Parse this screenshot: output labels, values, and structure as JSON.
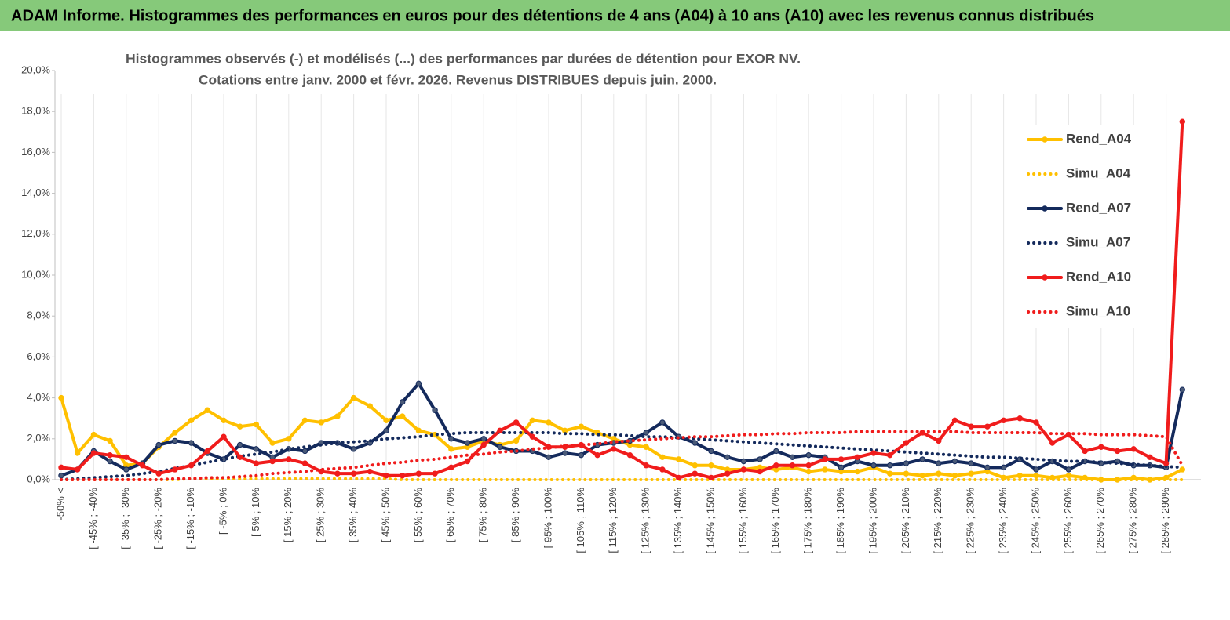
{
  "header": {
    "title": "ADAM Informe. Histogrammes des performances en euros pour des détentions de 4 ans (A04) à 10 ans (A10) avec les revenus connus distribués"
  },
  "chart_data": {
    "type": "line",
    "title": "Histogrammes observés (-) et modélisés (...) des performances par durées de détention pour EXOR NV.",
    "subtitle": "Cotations entre janv. 2000 et févr. 2026. Revenus DISTRIBUES depuis juin. 2000.",
    "categories": [
      "-50% <",
      null,
      "[ -45% ; -40%",
      null,
      "[ -35% ; -30%",
      null,
      "[ -25% ; -20%",
      null,
      "[ -15% ; -10%",
      null,
      "[ -5% ; 0%",
      null,
      "[ 5% ; 10%",
      null,
      "[ 15% ; 20%",
      null,
      "[ 25% ; 30%",
      null,
      "[ 35% ; 40%",
      null,
      "[ 45% ; 50%",
      null,
      "[ 55% ; 60%",
      null,
      "[ 65% ; 70%",
      null,
      "[ 75% ; 80%",
      null,
      "[ 85% ; 90%",
      null,
      "[ 95% ; 100%",
      null,
      "[ 105% ; 110%",
      null,
      "[ 115% ; 120%",
      null,
      "[ 125% ; 130%",
      null,
      "[ 135% ; 140%",
      null,
      "[ 145% ; 150%",
      null,
      "[ 155% ; 160%",
      null,
      "[ 165% ; 170%",
      null,
      "[ 175% ; 180%",
      null,
      "[ 185% ; 190%",
      null,
      "[ 195% ; 200%",
      null,
      "[ 205% ; 210%",
      null,
      "[ 215% ; 220%",
      null,
      "[ 225% ; 230%",
      null,
      "[ 235% ; 240%",
      null,
      "[ 245% ; 250%",
      null,
      "[ 255% ; 260%",
      null,
      "[ 265% ; 270%",
      null,
      "[ 275% ; 280%",
      null,
      "[ 285% ; 290%",
      null
    ],
    "series": [
      {
        "name": "Rend_A04",
        "color": "#ffc000",
        "line_style": "solid",
        "markers": true,
        "values": [
          4.0,
          1.3,
          2.2,
          1.9,
          0.7,
          0.8,
          1.6,
          2.3,
          2.9,
          3.4,
          2.9,
          2.6,
          2.7,
          1.8,
          2.0,
          2.9,
          2.8,
          3.1,
          4.0,
          3.6,
          2.9,
          3.1,
          2.4,
          2.2,
          1.5,
          1.6,
          1.9,
          1.7,
          1.9,
          2.9,
          2.8,
          2.4,
          2.6,
          2.3,
          2.0,
          1.7,
          1.6,
          1.1,
          1.0,
          0.7,
          0.7,
          0.5,
          0.5,
          0.6,
          0.5,
          0.6,
          0.4,
          0.5,
          0.4,
          0.4,
          0.6,
          0.3,
          0.3,
          0.2,
          0.3,
          0.2,
          0.3,
          0.4,
          0.1,
          0.2,
          0.2,
          0.1,
          0.2,
          0.1,
          0.0,
          0.0,
          0.1,
          0.0,
          0.1,
          0.5
        ]
      },
      {
        "name": "Simu_A04",
        "color": "#ffc000",
        "line_style": "dotted",
        "markers": false,
        "values": [
          0,
          0,
          0,
          0,
          0,
          0,
          0,
          0,
          0.05,
          0.05,
          0.05,
          0.05,
          0.05,
          0.05,
          0.05,
          0.05,
          0.05,
          0.05,
          0.05,
          0.05,
          0.05,
          0,
          0,
          0,
          0,
          0,
          0,
          0,
          0,
          0,
          0,
          0,
          0,
          0,
          0,
          0,
          0,
          0,
          0,
          0,
          0,
          0,
          0,
          0,
          0,
          0,
          0,
          0,
          0,
          0,
          0,
          0,
          0,
          0,
          0,
          0,
          0,
          0,
          0,
          0,
          0,
          0,
          0,
          0,
          0,
          0,
          0,
          0,
          0,
          0
        ]
      },
      {
        "name": "Rend_A07",
        "color": "#142a5c",
        "line_style": "solid",
        "markers": true,
        "values": [
          0.2,
          0.5,
          1.4,
          0.9,
          0.5,
          0.8,
          1.7,
          1.9,
          1.8,
          1.3,
          1.0,
          1.7,
          1.5,
          1.1,
          1.5,
          1.4,
          1.8,
          1.8,
          1.5,
          1.8,
          2.4,
          3.8,
          4.7,
          3.4,
          2.0,
          1.8,
          2.0,
          1.6,
          1.4,
          1.4,
          1.1,
          1.3,
          1.2,
          1.7,
          1.8,
          1.9,
          2.3,
          2.8,
          2.1,
          1.8,
          1.4,
          1.1,
          0.9,
          1.0,
          1.4,
          1.1,
          1.2,
          1.1,
          0.6,
          0.9,
          0.7,
          0.7,
          0.8,
          1.0,
          0.8,
          0.9,
          0.8,
          0.6,
          0.6,
          1.0,
          0.5,
          0.9,
          0.5,
          0.9,
          0.8,
          0.9,
          0.7,
          0.7,
          0.6,
          4.4
        ]
      },
      {
        "name": "Simu_A07",
        "color": "#142a5c",
        "line_style": "dotted",
        "markers": false,
        "values": [
          0.0,
          0.05,
          0.1,
          0.15,
          0.2,
          0.3,
          0.4,
          0.55,
          0.7,
          0.85,
          1.0,
          1.15,
          1.25,
          1.35,
          1.5,
          1.6,
          1.7,
          1.8,
          1.85,
          1.9,
          2.0,
          2.05,
          2.1,
          2.2,
          2.25,
          2.3,
          2.3,
          2.3,
          2.3,
          2.3,
          2.3,
          2.25,
          2.25,
          2.2,
          2.2,
          2.15,
          2.1,
          2.1,
          2.05,
          2.0,
          1.95,
          1.9,
          1.85,
          1.8,
          1.75,
          1.7,
          1.65,
          1.6,
          1.55,
          1.5,
          1.45,
          1.4,
          1.35,
          1.3,
          1.25,
          1.2,
          1.15,
          1.1,
          1.1,
          1.05,
          1.0,
          0.95,
          0.9,
          0.9,
          0.85,
          0.8,
          0.75,
          0.7,
          0.65,
          0.6
        ]
      },
      {
        "name": "Rend_A10",
        "color": "#f01c1c",
        "line_style": "solid",
        "markers": true,
        "values": [
          0.6,
          0.5,
          1.3,
          1.2,
          1.1,
          0.7,
          0.3,
          0.5,
          0.7,
          1.4,
          2.1,
          1.1,
          0.8,
          0.9,
          1.0,
          0.8,
          0.4,
          0.3,
          0.3,
          0.4,
          0.2,
          0.2,
          0.3,
          0.3,
          0.6,
          0.9,
          1.7,
          2.4,
          2.8,
          2.1,
          1.6,
          1.6,
          1.7,
          1.2,
          1.5,
          1.2,
          0.7,
          0.5,
          0.1,
          0.3,
          0.1,
          0.3,
          0.5,
          0.4,
          0.7,
          0.7,
          0.7,
          1.0,
          1.0,
          1.1,
          1.3,
          1.2,
          1.8,
          2.3,
          1.9,
          2.9,
          2.6,
          2.6,
          2.9,
          3.0,
          2.8,
          1.8,
          2.2,
          1.4,
          1.6,
          1.4,
          1.5,
          1.1,
          0.8,
          17.5
        ]
      },
      {
        "name": "Simu_A10",
        "color": "#f01c1c",
        "line_style": "dotted",
        "markers": false,
        "values": [
          0,
          0,
          0,
          0,
          0,
          0,
          0,
          0.05,
          0.05,
          0.1,
          0.1,
          0.15,
          0.2,
          0.3,
          0.35,
          0.4,
          0.5,
          0.55,
          0.6,
          0.7,
          0.8,
          0.85,
          0.95,
          1.0,
          1.1,
          1.2,
          1.25,
          1.35,
          1.4,
          1.5,
          1.55,
          1.65,
          1.7,
          1.75,
          1.85,
          1.9,
          1.95,
          2.0,
          2.05,
          2.1,
          2.1,
          2.15,
          2.2,
          2.2,
          2.25,
          2.25,
          2.3,
          2.3,
          2.3,
          2.35,
          2.35,
          2.35,
          2.35,
          2.35,
          2.35,
          2.35,
          2.3,
          2.3,
          2.3,
          2.3,
          2.3,
          2.25,
          2.25,
          2.25,
          2.2,
          2.2,
          2.2,
          2.15,
          2.1,
          0.7
        ]
      }
    ],
    "ylim": [
      0,
      20
    ],
    "yticks": [
      {
        "value": 0,
        "label": "0,0%"
      },
      {
        "value": 2,
        "label": "2,0%"
      },
      {
        "value": 4,
        "label": "4,0%"
      },
      {
        "value": 6,
        "label": "6,0%"
      },
      {
        "value": 8,
        "label": "8,0%"
      },
      {
        "value": 10,
        "label": "10,0%"
      },
      {
        "value": 12,
        "label": "12,0%"
      },
      {
        "value": 14,
        "label": "14,0%"
      },
      {
        "value": 16,
        "label": "16,0%"
      },
      {
        "value": 18,
        "label": "18,0%"
      },
      {
        "value": 20,
        "label": "20,0%"
      }
    ],
    "grid": "x",
    "legend": "upper right"
  }
}
